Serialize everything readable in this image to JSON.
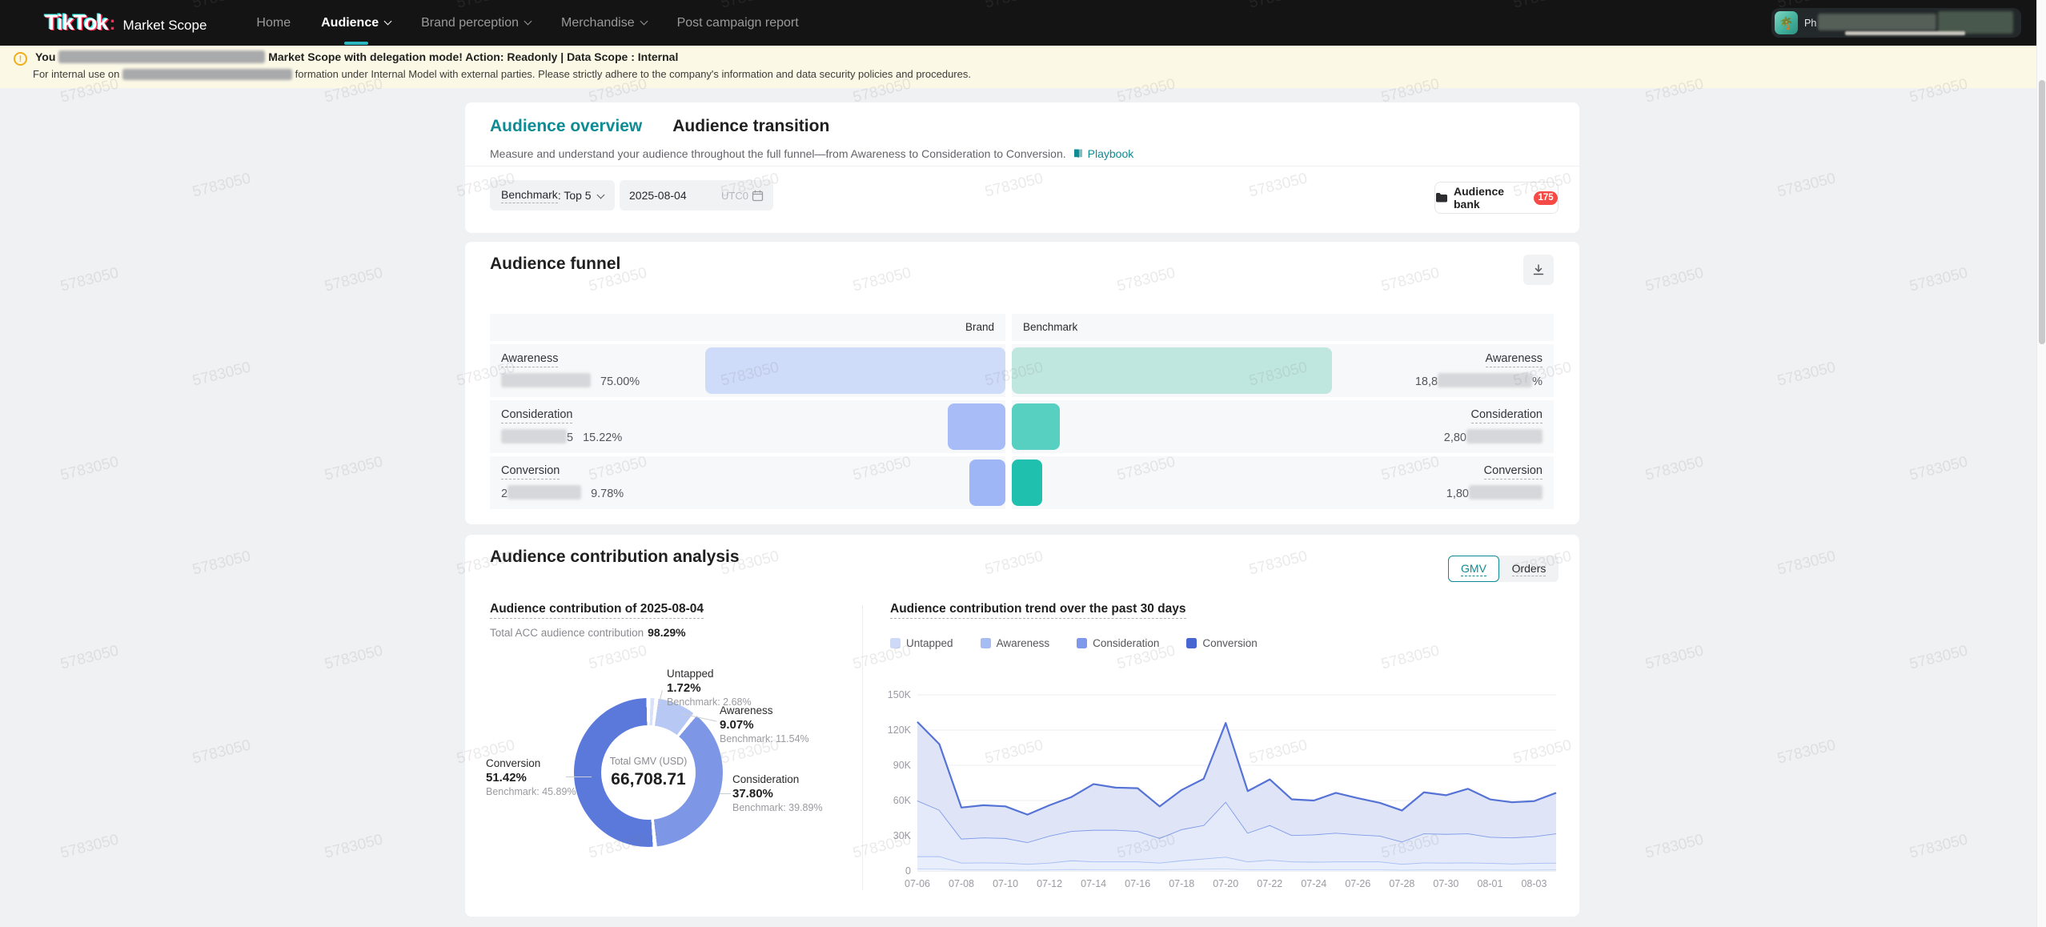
{
  "watermark": "5783050",
  "nav": {
    "logo_main": "TikTok",
    "logo_colon": ":",
    "logo_product": "Market Scope",
    "items": [
      {
        "label": "Home"
      },
      {
        "label": "Audience"
      },
      {
        "label": "Brand perception"
      },
      {
        "label": "Merchandise"
      },
      {
        "label": "Post campaign report"
      }
    ],
    "user_visible_text": "Ph"
  },
  "banner": {
    "line1_prefix": "You",
    "line1_rest": "Market Scope with delegation mode! Action: Readonly | Data Scope : Internal",
    "line2_prefix": "For internal use on",
    "line2_rest": "formation under Internal Model with external parties. Please strictly adhere to the company's information and data security policies and procedures."
  },
  "header": {
    "tab_overview": "Audience overview",
    "tab_transition": "Audience transition",
    "subtitle": "Measure and understand your audience throughout the full funnel—from Awareness to Consideration to Conversion.",
    "playbook": "Playbook"
  },
  "controls": {
    "benchmark_label": "Benchmark",
    "benchmark_value": ": Top 5",
    "date": "2025-08-04",
    "timezone": "UTC0",
    "audience_bank": "Audience bank",
    "audience_bank_count": "175"
  },
  "funnel": {
    "title": "Audience funnel",
    "col_brand": "Brand",
    "col_benchmark": "Benchmark",
    "rows": [
      {
        "stage": "Awareness",
        "l_pre": "",
        "l_post": "",
        "l_pct": "75.00%",
        "r_pre": "18,8",
        "r_post": "%",
        "brand_w": 375,
        "bench_w": 400,
        "brand_color": "#cedbf9",
        "bench_color": "#c0e7df"
      },
      {
        "stage": "Consideration",
        "l_pre": "",
        "l_post": "5",
        "l_pct": "15.22%",
        "r_pre": "2,80",
        "r_post": "",
        "brand_w": 72,
        "bench_w": 60,
        "brand_color": "#a8bdf7",
        "bench_color": "#57d0c1"
      },
      {
        "stage": "Conversion",
        "l_pre": "2",
        "l_post": "",
        "l_pct": "9.78%",
        "r_pre": "1,80",
        "r_post": "",
        "brand_w": 45,
        "bench_w": 38,
        "brand_color": "#9fb6f6",
        "bench_color": "#1fc0ae"
      }
    ]
  },
  "contribution": {
    "title": "Audience contribution analysis",
    "toggle_gmv": "GMV",
    "toggle_orders": "Orders",
    "donut_section_title": "Audience contribution of 2025-08-04",
    "total_label": "Total ACC audience contribution",
    "total_value": "98.29%",
    "trend_section_title": "Audience contribution trend over the past 30 days"
  },
  "chart_data": [
    {
      "type": "donut",
      "title": "Audience contribution of 2025-08-04",
      "center_label": "Total GMV (USD)",
      "center_value": "66,708.71",
      "slices": [
        {
          "name": "Untapped",
          "pct": 1.72,
          "label": "1.72%",
          "benchmark": "Benchmark: 2.68%",
          "color": "#d9e1fa"
        },
        {
          "name": "Awareness",
          "pct": 9.07,
          "label": "9.07%",
          "benchmark": "Benchmark: 11.54%",
          "color": "#b7c8f5"
        },
        {
          "name": "Consideration",
          "pct": 37.8,
          "label": "37.80%",
          "benchmark": "Benchmark: 39.89%",
          "color": "#7d97e6"
        },
        {
          "name": "Conversion",
          "pct": 51.42,
          "label": "51.42%",
          "benchmark": "Benchmark: 45.89%",
          "color": "#5b79da"
        }
      ]
    },
    {
      "type": "area",
      "title": "Audience contribution trend over the past 30 days",
      "stacked": true,
      "note": "cumulative_top_k values are stacked cumulative totals in thousands, estimated from gridlines",
      "x": [
        "07-06",
        "07-07",
        "07-08",
        "07-09",
        "07-10",
        "07-11",
        "07-12",
        "07-13",
        "07-14",
        "07-15",
        "07-16",
        "07-17",
        "07-18",
        "07-19",
        "07-20",
        "07-21",
        "07-22",
        "07-23",
        "07-24",
        "07-25",
        "07-26",
        "07-27",
        "07-28",
        "07-29",
        "07-30",
        "07-31",
        "08-01",
        "08-02",
        "08-03",
        "08-04"
      ],
      "x_tick_every": 2,
      "ylim": [
        0,
        150000
      ],
      "yticks": [
        "0",
        "30K",
        "60K",
        "90K",
        "120K",
        "150K"
      ],
      "legend_position": "top",
      "grid": true,
      "series": [
        {
          "name": "Untapped",
          "legend_color": "#cdd9f7",
          "line_color": "#bcd0f7",
          "fill_color": "#eef3fd",
          "cumulative_top_k": [
            2,
            2,
            1.2,
            1.2,
            1.2,
            1,
            1.2,
            1.5,
            1.3,
            1.3,
            1.3,
            1.2,
            1.6,
            1.8,
            2,
            1.3,
            1.4,
            1.3,
            1.3,
            1.3,
            1.3,
            1.3,
            1,
            1.2,
            1.2,
            1.2,
            1.1,
            1,
            1.1,
            1.2
          ]
        },
        {
          "name": "Awareness",
          "legend_color": "#a5bdf3",
          "line_color": "#a3bdf3",
          "fill_color": "#e9eefc",
          "cumulative_top_k": [
            12.5,
            12.5,
            7,
            7.2,
            7,
            6,
            7,
            9,
            8,
            8,
            8,
            7,
            9,
            10.5,
            12,
            8,
            9.5,
            8,
            7.8,
            8,
            8,
            8,
            6,
            7.2,
            7,
            7.2,
            6.8,
            6.2,
            6.8,
            7
          ]
        },
        {
          "name": "Consideration",
          "legend_color": "#7e99e9",
          "line_color": "#7f9ae9",
          "fill_color": "#e4eafa",
          "cumulative_top_k": [
            60,
            52,
            27.5,
            28.5,
            28,
            24.5,
            30,
            34,
            35,
            35,
            34,
            28,
            35.5,
            39,
            59,
            32.5,
            39,
            30.5,
            31,
            32.5,
            31,
            30,
            25,
            32,
            31.5,
            32,
            29,
            28.5,
            29.5,
            32
          ]
        },
        {
          "name": "Conversion",
          "legend_color": "#4766d1",
          "line_color": "#5572d6",
          "fill_color": "#dfe5f7",
          "cumulative_top_k": [
            127,
            108,
            54,
            56,
            55,
            48,
            56,
            63,
            74,
            71,
            70.5,
            55,
            69,
            78.5,
            126,
            68,
            78,
            61,
            60,
            66.5,
            62,
            58,
            51.5,
            67,
            64.5,
            70,
            61,
            58.5,
            59.5,
            66.5
          ]
        }
      ]
    }
  ]
}
